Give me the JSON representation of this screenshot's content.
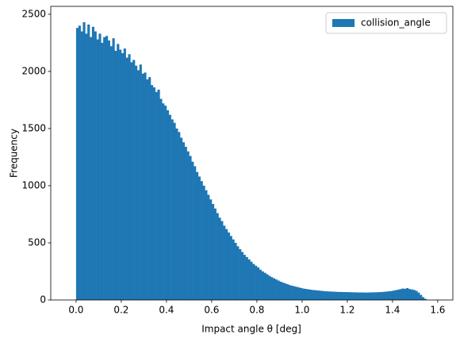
{
  "chart_data": {
    "type": "histogram",
    "xlabel": "Impact angle θ [deg]",
    "ylabel": "Frequency",
    "series": [
      {
        "name": "collision_angle",
        "color": "#1f77b4"
      }
    ],
    "legend": "upper right",
    "bins": [
      0,
      0.01,
      0.02,
      0.03,
      0.04,
      0.05,
      0.06,
      0.07,
      0.08,
      0.09,
      0.1,
      0.11,
      0.12,
      0.13,
      0.14,
      0.15,
      0.16,
      0.17,
      0.18,
      0.19,
      0.2,
      0.21,
      0.22,
      0.23,
      0.24,
      0.25,
      0.26,
      0.27,
      0.28,
      0.29,
      0.3,
      0.31,
      0.32,
      0.33,
      0.34,
      0.35,
      0.36,
      0.37,
      0.38,
      0.39,
      0.4,
      0.41,
      0.42,
      0.43,
      0.44,
      0.45,
      0.46,
      0.47,
      0.48,
      0.49,
      0.5,
      0.51,
      0.52,
      0.53,
      0.54,
      0.55,
      0.56,
      0.57,
      0.58,
      0.59,
      0.6,
      0.61,
      0.62,
      0.63,
      0.64,
      0.65,
      0.66,
      0.67,
      0.68,
      0.69,
      0.7,
      0.71,
      0.72,
      0.73,
      0.74,
      0.75,
      0.76,
      0.77,
      0.78,
      0.79,
      0.8,
      0.81,
      0.82,
      0.83,
      0.84,
      0.85,
      0.86,
      0.87,
      0.88,
      0.89,
      0.9,
      0.91,
      0.92,
      0.93,
      0.94,
      0.95,
      0.96,
      0.97,
      0.98,
      0.99,
      1.0,
      1.01,
      1.02,
      1.03,
      1.04,
      1.05,
      1.06,
      1.07,
      1.08,
      1.09,
      1.1,
      1.11,
      1.12,
      1.13,
      1.14,
      1.15,
      1.16,
      1.17,
      1.18,
      1.19,
      1.2,
      1.21,
      1.22,
      1.23,
      1.24,
      1.25,
      1.26,
      1.27,
      1.28,
      1.29,
      1.3,
      1.31,
      1.32,
      1.33,
      1.34,
      1.35,
      1.36,
      1.37,
      1.38,
      1.39,
      1.4,
      1.41,
      1.42,
      1.43,
      1.44,
      1.45,
      1.46,
      1.47,
      1.48,
      1.49,
      1.5,
      1.51,
      1.52,
      1.53,
      1.54,
      1.55
    ],
    "values": [
      2380,
      2400,
      2350,
      2430,
      2330,
      2410,
      2300,
      2390,
      2350,
      2280,
      2330,
      2250,
      2300,
      2310,
      2270,
      2220,
      2290,
      2180,
      2240,
      2190,
      2160,
      2200,
      2120,
      2150,
      2080,
      2100,
      2050,
      2010,
      2060,
      1980,
      1990,
      1930,
      1950,
      1880,
      1860,
      1820,
      1840,
      1760,
      1720,
      1700,
      1660,
      1620,
      1580,
      1550,
      1500,
      1470,
      1420,
      1380,
      1340,
      1300,
      1260,
      1210,
      1170,
      1120,
      1080,
      1040,
      1000,
      960,
      920,
      880,
      840,
      800,
      760,
      720,
      690,
      650,
      620,
      590,
      560,
      530,
      500,
      470,
      445,
      420,
      395,
      375,
      355,
      335,
      315,
      300,
      285,
      265,
      250,
      238,
      225,
      212,
      200,
      190,
      180,
      170,
      160,
      152,
      145,
      138,
      130,
      125,
      120,
      115,
      110,
      105,
      100,
      97,
      94,
      91,
      88,
      86,
      84,
      82,
      80,
      78,
      76,
      75,
      74,
      73,
      72,
      71,
      70,
      70,
      69,
      69,
      68,
      68,
      67,
      67,
      66,
      66,
      66,
      65,
      65,
      66,
      66,
      67,
      67,
      68,
      69,
      70,
      72,
      74,
      76,
      78,
      82,
      86,
      90,
      95,
      100,
      98,
      104,
      96,
      92,
      88,
      80,
      65,
      45,
      25,
      10
    ],
    "xlim": [
      -0.112,
      1.667
    ],
    "ylim": [
      0,
      2569
    ],
    "xticks": [
      {
        "value": 0,
        "label": "0.0"
      },
      {
        "value": 0.2,
        "label": "0.2"
      },
      {
        "value": 0.4,
        "label": "0.4"
      },
      {
        "value": 0.6,
        "label": "0.6"
      },
      {
        "value": 0.8,
        "label": "0.8"
      },
      {
        "value": 1,
        "label": "1.0"
      },
      {
        "value": 1.2,
        "label": "1.2"
      },
      {
        "value": 1.4,
        "label": "1.4"
      },
      {
        "value": 1.6,
        "label": "1.6"
      }
    ],
    "yticks": [
      0,
      500,
      1000,
      1500,
      2000,
      2500
    ],
    "grid": false
  }
}
